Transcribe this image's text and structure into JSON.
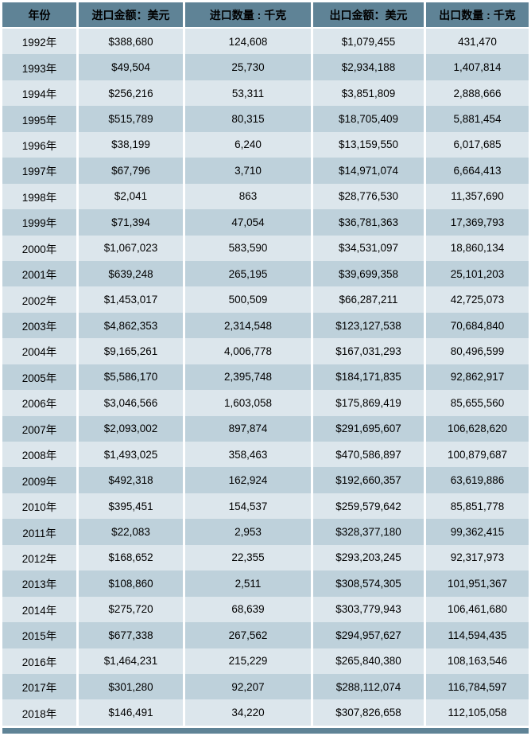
{
  "table": {
    "headers": [
      "年份",
      "进口金额：美元",
      "进口数量 : 千克",
      "出口金额：美元",
      "出口数量 : 千克"
    ],
    "rows": [
      [
        "1992年",
        "$388,680",
        "124,608",
        "$1,079,455",
        "431,470"
      ],
      [
        "1993年",
        "$49,504",
        "25,730",
        "$2,934,188",
        "1,407,814"
      ],
      [
        "1994年",
        "$256,216",
        "53,311",
        "$3,851,809",
        "2,888,666"
      ],
      [
        "1995年",
        "$515,789",
        "80,315",
        "$18,705,409",
        "5,881,454"
      ],
      [
        "1996年",
        "$38,199",
        "6,240",
        "$13,159,550",
        "6,017,685"
      ],
      [
        "1997年",
        "$67,796",
        "3,710",
        "$14,971,074",
        "6,664,413"
      ],
      [
        "1998年",
        "$2,041",
        "863",
        "$28,776,530",
        "11,357,690"
      ],
      [
        "1999年",
        "$71,394",
        "47,054",
        "$36,781,363",
        "17,369,793"
      ],
      [
        "2000年",
        "$1,067,023",
        "583,590",
        "$34,531,097",
        "18,860,134"
      ],
      [
        "2001年",
        "$639,248",
        "265,195",
        "$39,699,358",
        "25,101,203"
      ],
      [
        "2002年",
        "$1,453,017",
        "500,509",
        "$66,287,211",
        "42,725,073"
      ],
      [
        "2003年",
        "$4,862,353",
        "2,314,548",
        "$123,127,538",
        "70,684,840"
      ],
      [
        "2004年",
        "$9,165,261",
        "4,006,778",
        "$167,031,293",
        "80,496,599"
      ],
      [
        "2005年",
        "$5,586,170",
        "2,395,748",
        "$184,171,835",
        "92,862,917"
      ],
      [
        "2006年",
        "$3,046,566",
        "1,603,058",
        "$175,869,419",
        "85,655,560"
      ],
      [
        "2007年",
        "$2,093,002",
        "897,874",
        "$291,695,607",
        "106,628,620"
      ],
      [
        "2008年",
        "$1,493,025",
        "358,463",
        "$470,586,897",
        "100,879,687"
      ],
      [
        "2009年",
        "$492,318",
        "162,924",
        "$192,660,357",
        "63,619,886"
      ],
      [
        "2010年",
        "$395,451",
        "154,537",
        "$259,579,642",
        "85,851,778"
      ],
      [
        "2011年",
        "$22,083",
        "2,953",
        "$328,377,180",
        "99,362,415"
      ],
      [
        "2012年",
        "$168,652",
        "22,355",
        "$293,203,245",
        "92,317,973"
      ],
      [
        "2013年",
        "$108,860",
        "2,511",
        "$308,574,305",
        "101,951,367"
      ],
      [
        "2014年",
        "$275,720",
        "68,639",
        "$303,779,943",
        "106,461,680"
      ],
      [
        "2015年",
        "$677,338",
        "267,562",
        "$294,957,627",
        "114,594,435"
      ],
      [
        "2016年",
        "$1,464,231",
        "215,229",
        "$265,840,380",
        "108,163,546"
      ],
      [
        "2017年",
        "$301,280",
        "92,207",
        "$288,112,074",
        "116,784,597"
      ],
      [
        "2018年",
        "$146,491",
        "34,220",
        "$307,826,658",
        "112,105,058"
      ]
    ]
  },
  "colors": {
    "header_bg": "#5f8396",
    "row_light": "#dce6ec",
    "row_dark": "#bed1db",
    "grid": "#ffffff",
    "text": "#000000"
  },
  "chart_data": {
    "type": "table",
    "title": "",
    "columns": [
      "年份",
      "进口金额：美元",
      "进口数量 : 千克",
      "出口金额：美元",
      "出口数量 : 千克"
    ],
    "categories": [
      "1992年",
      "1993年",
      "1994年",
      "1995年",
      "1996年",
      "1997年",
      "1998年",
      "1999年",
      "2000年",
      "2001年",
      "2002年",
      "2003年",
      "2004年",
      "2005年",
      "2006年",
      "2007年",
      "2008年",
      "2009年",
      "2010年",
      "2011年",
      "2012年",
      "2013年",
      "2014年",
      "2015年",
      "2016年",
      "2017年",
      "2018年"
    ],
    "series": [
      {
        "name": "进口金额：美元",
        "values": [
          388680,
          49504,
          256216,
          515789,
          38199,
          67796,
          2041,
          71394,
          1067023,
          639248,
          1453017,
          4862353,
          9165261,
          5586170,
          3046566,
          2093002,
          1493025,
          492318,
          395451,
          22083,
          168652,
          108860,
          275720,
          677338,
          1464231,
          301280,
          146491
        ]
      },
      {
        "name": "进口数量 : 千克",
        "values": [
          124608,
          25730,
          53311,
          80315,
          6240,
          3710,
          863,
          47054,
          583590,
          265195,
          500509,
          2314548,
          4006778,
          2395748,
          1603058,
          897874,
          358463,
          162924,
          154537,
          2953,
          22355,
          2511,
          68639,
          267562,
          215229,
          92207,
          34220
        ]
      },
      {
        "name": "出口金额：美元",
        "values": [
          1079455,
          2934188,
          3851809,
          18705409,
          13159550,
          14971074,
          28776530,
          36781363,
          34531097,
          39699358,
          66287211,
          123127538,
          167031293,
          184171835,
          175869419,
          291695607,
          470586897,
          192660357,
          259579642,
          328377180,
          293203245,
          308574305,
          303779943,
          294957627,
          265840380,
          288112074,
          307826658
        ]
      },
      {
        "name": "出口数量 : 千克",
        "values": [
          431470,
          1407814,
          2888666,
          5881454,
          6017685,
          6664413,
          11357690,
          17369793,
          18860134,
          25101203,
          42725073,
          70684840,
          80496599,
          92862917,
          85655560,
          106628620,
          100879687,
          63619886,
          85851778,
          99362415,
          92317973,
          101951367,
          106461680,
          114594435,
          108163546,
          116784597,
          112105058
        ]
      }
    ]
  }
}
